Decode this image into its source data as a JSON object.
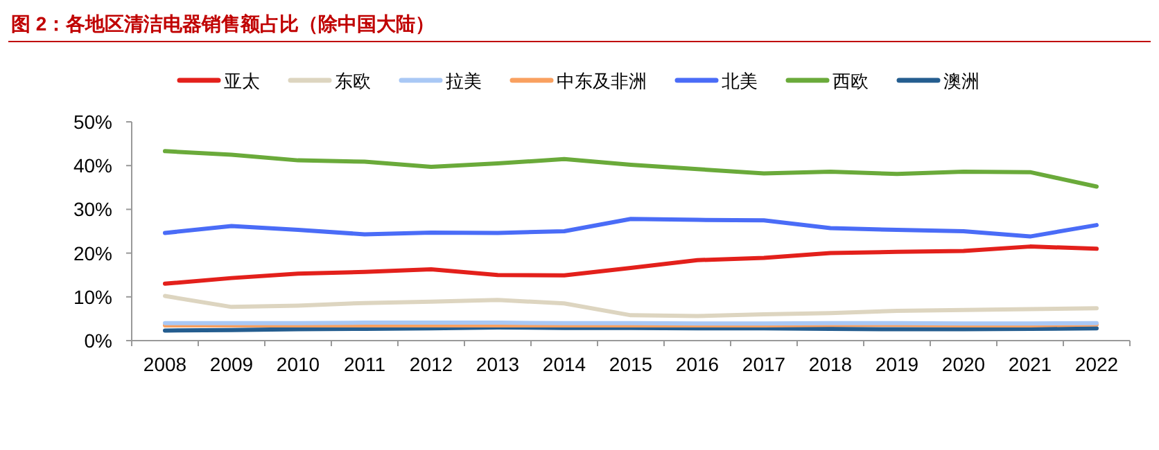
{
  "chart_data": {
    "type": "line",
    "title": "图 2：各地区清洁电器销售额占比（除中国大陆）",
    "categories": [
      "2008",
      "2009",
      "2010",
      "2011",
      "2012",
      "2013",
      "2014",
      "2015",
      "2016",
      "2017",
      "2018",
      "2019",
      "2020",
      "2021",
      "2022"
    ],
    "series": [
      {
        "name": "亚太",
        "color": "#e3201b",
        "values": [
          13.0,
          14.3,
          15.3,
          15.7,
          16.3,
          15.0,
          14.9,
          16.6,
          18.4,
          18.9,
          20.0,
          20.3,
          20.5,
          21.5,
          21.0
        ]
      },
      {
        "name": "东欧",
        "color": "#ddd5c0",
        "values": [
          10.2,
          7.7,
          8.0,
          8.6,
          8.9,
          9.3,
          8.5,
          5.8,
          5.6,
          6.0,
          6.3,
          6.8,
          7.0,
          7.2,
          7.4
        ]
      },
      {
        "name": "拉美",
        "color": "#a9c8f5",
        "values": [
          4.0,
          4.0,
          4.0,
          4.1,
          4.1,
          4.1,
          4.0,
          4.0,
          3.9,
          3.9,
          4.0,
          4.0,
          3.9,
          3.9,
          4.0
        ]
      },
      {
        "name": "中东及非洲",
        "color": "#f9a05f",
        "values": [
          3.5,
          3.5,
          3.5,
          3.5,
          3.5,
          3.5,
          3.5,
          3.5,
          3.5,
          3.5,
          3.6,
          3.6,
          3.5,
          3.5,
          3.7
        ]
      },
      {
        "name": "北美",
        "color": "#4a6cf7",
        "values": [
          24.6,
          26.2,
          25.3,
          24.3,
          24.7,
          24.6,
          25.0,
          27.8,
          27.6,
          27.5,
          25.7,
          25.3,
          25.0,
          23.8,
          26.4
        ]
      },
      {
        "name": "西欧",
        "color": "#6aaa3a",
        "values": [
          43.3,
          42.5,
          41.2,
          40.9,
          39.7,
          40.5,
          41.5,
          40.2,
          39.2,
          38.2,
          38.6,
          38.1,
          38.6,
          38.5,
          35.2
        ]
      },
      {
        "name": "澳洲",
        "color": "#245d8f",
        "values": [
          2.3,
          2.4,
          2.6,
          2.7,
          2.8,
          3.0,
          2.9,
          2.9,
          2.8,
          2.8,
          2.7,
          2.6,
          2.6,
          2.7,
          2.8
        ]
      }
    ],
    "ylim": [
      0,
      50
    ],
    "yticks": [
      {
        "value": 0,
        "label": "0%"
      },
      {
        "value": 10,
        "label": "10%"
      },
      {
        "value": 20,
        "label": "20%"
      },
      {
        "value": 30,
        "label": "30%"
      },
      {
        "value": 40,
        "label": "40%"
      },
      {
        "value": 50,
        "label": "50%"
      }
    ],
    "legend": "top",
    "grid": false,
    "marker": "none",
    "line_style": "solid"
  }
}
